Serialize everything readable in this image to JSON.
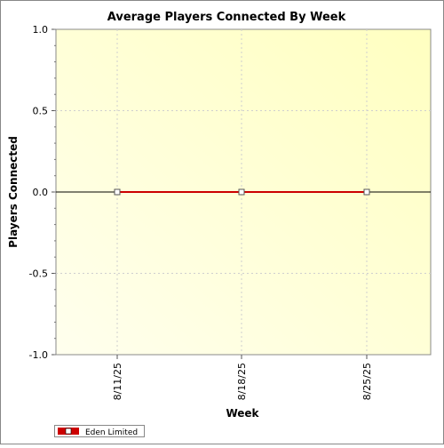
{
  "chart_data": {
    "type": "line",
    "title": "Average Players Connected By Week",
    "xlabel": "Week",
    "ylabel": "Players Connected",
    "categories": [
      "8/11/25",
      "8/18/25",
      "8/25/25"
    ],
    "series": [
      {
        "name": "Eden Limited",
        "values": [
          0,
          0,
          0
        ],
        "color": "#cc0000"
      }
    ],
    "ylim": [
      -1.0,
      1.0
    ],
    "yticks": [
      "-1.0",
      "-0.5",
      "0.0",
      "0.5",
      "1.0"
    ],
    "grid": true,
    "legend_position": "bottom-left",
    "plot_background": [
      "#ffffee",
      "#ffffc0"
    ]
  }
}
